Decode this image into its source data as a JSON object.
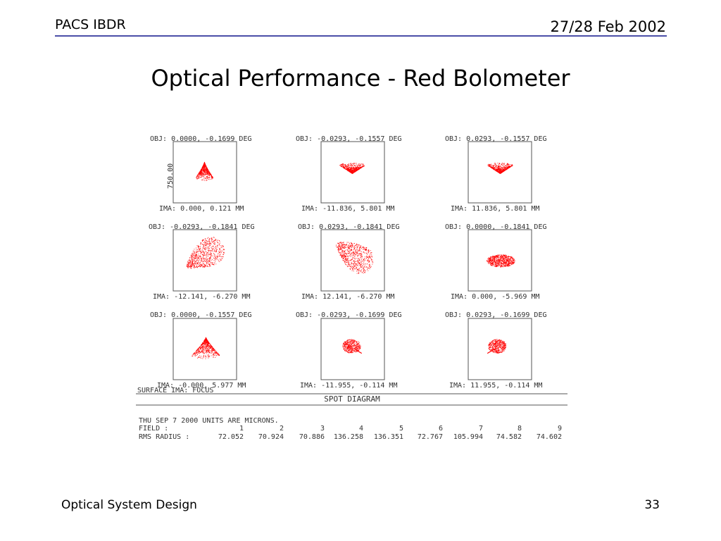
{
  "header": {
    "left": "PACS IBDR",
    "right": "27/28 Feb 2002"
  },
  "title": "Optical Performance - Red Bolometer",
  "footer": {
    "left": "Optical System Design",
    "right": "33"
  },
  "diagram": {
    "scale_label": "750.00",
    "panels": [
      {
        "obj": "OBJ: 0.0000, -0.1699 DEG",
        "ima": "IMA: 0.000, 0.121 MM"
      },
      {
        "obj": "OBJ: -0.0293, -0.1557 DEG",
        "ima": "IMA: -11.836, 5.801 MM"
      },
      {
        "obj": "OBJ: 0.0293, -0.1557 DEG",
        "ima": "IMA: 11.836, 5.801 MM"
      },
      {
        "obj": "OBJ: -0.0293, -0.1841 DEG",
        "ima": "IMA: -12.141, -6.270 MM"
      },
      {
        "obj": "OBJ: 0.0293, -0.1841 DEG",
        "ima": "IMA: 12.141, -6.270 MM"
      },
      {
        "obj": "OBJ: 0.0000, -0.1841 DEG",
        "ima": "IMA: 0.000, -5.969 MM"
      },
      {
        "obj": "OBJ: 0.0000, -0.1557 DEG",
        "ima": "IMA: -0.000, 5.977 MM"
      },
      {
        "obj": "OBJ: -0.0293, -0.1699 DEG",
        "ima": "IMA: -11.955, -0.114 MM"
      },
      {
        "obj": "OBJ: 0.0293, -0.1699 DEG",
        "ima": "IMA: 11.955, -0.114 MM"
      }
    ],
    "surface": "SURFACE IMA: FOCUS",
    "section_title": "SPOT DIAGRAM",
    "date_units": "THU SEP 7 2000  UNITS ARE MICRONS.",
    "field_label": "FIELD     :",
    "rms_label": "RMS RADIUS :",
    "fields": [
      "1",
      "2",
      "3",
      "4",
      "5",
      "6",
      "7",
      "8",
      "9"
    ],
    "rms": [
      "72.052",
      "70.924",
      "70.886",
      "136.258",
      "136.351",
      "72.767",
      "105.994",
      "74.582",
      "74.602"
    ],
    "spot_color": "#ff0000"
  }
}
